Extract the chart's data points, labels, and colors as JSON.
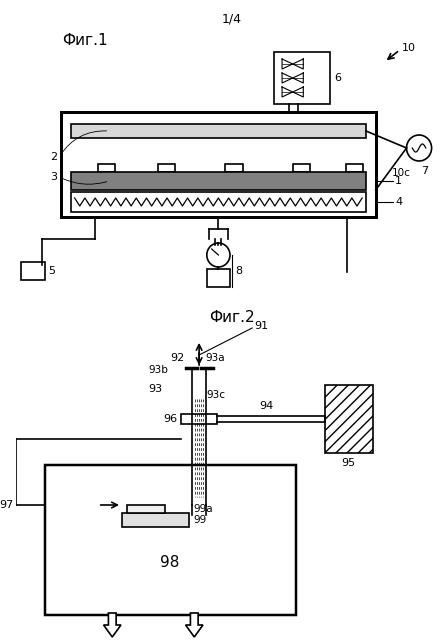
{
  "page_label": "1/4",
  "fig1_label": "Фиг.1",
  "fig2_label": "Фиг.2",
  "bg_color": "#ffffff",
  "line_color": "#000000"
}
